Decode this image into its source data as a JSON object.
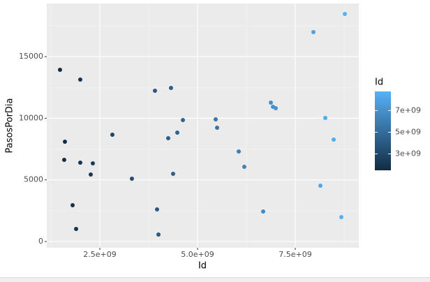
{
  "chart_data": {
    "type": "scatter",
    "x_label": "Id",
    "y_label": "PasosPorDia",
    "x": [
      1482000000.0,
      2000000000.0,
      1607000000.0,
      1589000000.0,
      2000000000.0,
      2321000000.0,
      2268000000.0,
      1804000000.0,
      1893000000.0,
      2821000000.0,
      3321000000.0,
      3911000000.0,
      4321000000.0,
      4625000000.0,
      4482000000.0,
      4250000000.0,
      4375000000.0,
      3964000000.0,
      4000000000.0,
      5464000000.0,
      5500000000.0,
      6054000000.0,
      6196000000.0,
      6679000000.0,
      6875000000.0,
      6929000000.0,
      7000000000.0,
      7964000000.0,
      8768000000.0,
      8268000000.0,
      8482000000.0,
      8143000000.0,
      8679000000.0
    ],
    "values": [
      13930,
      13137,
      8097,
      6625,
      6398,
      6342,
      5436,
      2945,
      1019,
      8664,
      5096,
      12231,
      12457,
      9853,
      8834,
      8381,
      5493,
      2605,
      566,
      9909,
      9230,
      7305,
      6059,
      2435,
      11268,
      10929,
      10815,
      16988,
      18460,
      10023,
      8267,
      4530,
      1982
    ],
    "xlim": [
      1143000000.0,
      9125000000.0
    ],
    "xticks": [
      {
        "value": 2500000000.0,
        "label": "2.5e+09"
      },
      {
        "value": 5000000000.0,
        "label": "5.0e+09"
      },
      {
        "value": 7500000000.0,
        "label": "7.5e+09"
      }
    ],
    "ylim": [
      -510,
      19310
    ],
    "yticks": [
      0,
      5000,
      10000,
      15000
    ],
    "grid": true,
    "legend_title": "Id",
    "color_low": "#132B43",
    "color_high": "#56B1F7",
    "colorlim": [
      1482000000.0,
      8768000000.0
    ],
    "colorticks": [
      {
        "value": 3000000000.0,
        "label": "3e+09"
      },
      {
        "value": 5000000000.0,
        "label": "5e+09"
      },
      {
        "value": 7000000000.0,
        "label": "7e+09"
      }
    ]
  }
}
